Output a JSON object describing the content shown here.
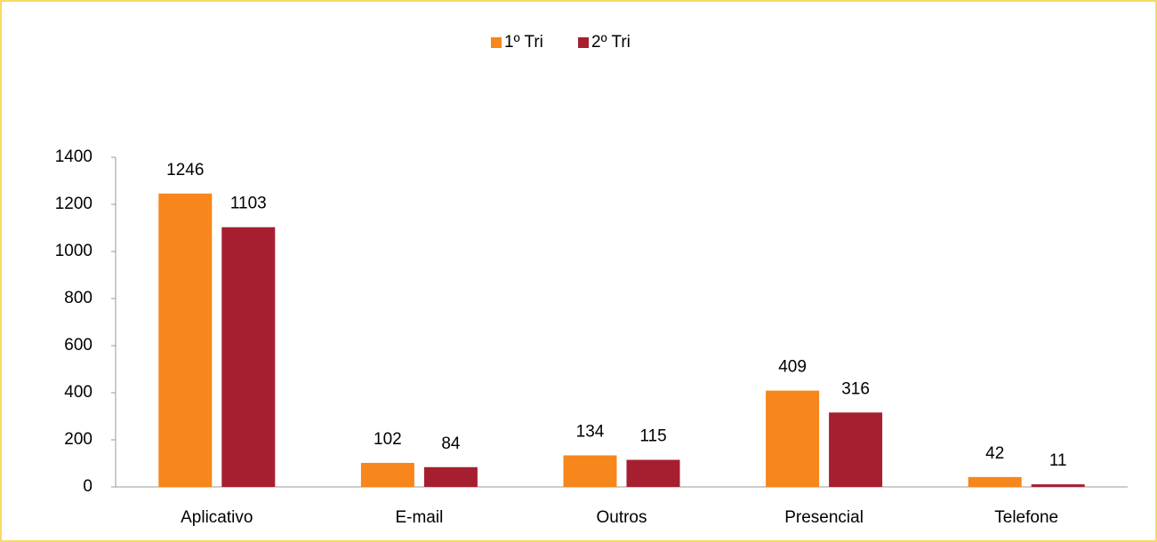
{
  "chart_data": {
    "type": "bar",
    "categories": [
      "Aplicativo",
      "E-mail",
      "Outros",
      "Presencial",
      "Telefone"
    ],
    "series": [
      {
        "name": "1º Tri",
        "color": "#f7861c",
        "values": [
          1246,
          102,
          134,
          409,
          42
        ]
      },
      {
        "name": "2º Tri",
        "color": "#a51f30",
        "values": [
          1103,
          84,
          115,
          316,
          11
        ]
      }
    ],
    "ylim": [
      0,
      1400
    ],
    "yticks": [
      0,
      200,
      400,
      600,
      800,
      1000,
      1200,
      1400
    ],
    "legend": "top"
  }
}
